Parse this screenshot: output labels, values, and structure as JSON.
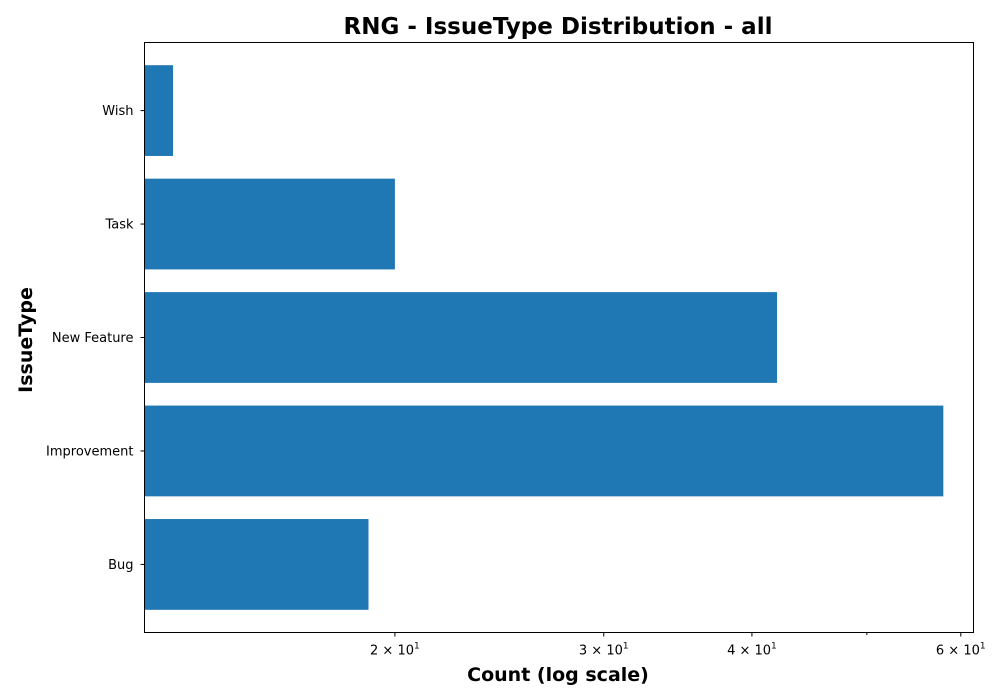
{
  "chart_data": {
    "type": "bar",
    "orientation": "horizontal",
    "title": "RNG - IssueType Distribution - all",
    "xlabel": "Count (log scale)",
    "ylabel": "IssueType",
    "x_scale": "log",
    "xlim": [
      12.3,
      61.5
    ],
    "categories": [
      "Bug",
      "Improvement",
      "New Feature",
      "Task",
      "Wish"
    ],
    "values": [
      19,
      58,
      42,
      20,
      13
    ],
    "x_major_ticks": [
      20,
      30,
      40,
      60
    ],
    "x_major_tick_labels": [
      {
        "mantissa": "2",
        "base": "10",
        "exp": "1"
      },
      {
        "mantissa": "3",
        "base": "10",
        "exp": "1"
      },
      {
        "mantissa": "4",
        "base": "10",
        "exp": "1"
      },
      {
        "mantissa": "6",
        "base": "10",
        "exp": "1"
      }
    ],
    "x_minor_ticks": [
      50
    ],
    "bar_color": "#1f77b4",
    "grid": false,
    "legend": "none"
  }
}
